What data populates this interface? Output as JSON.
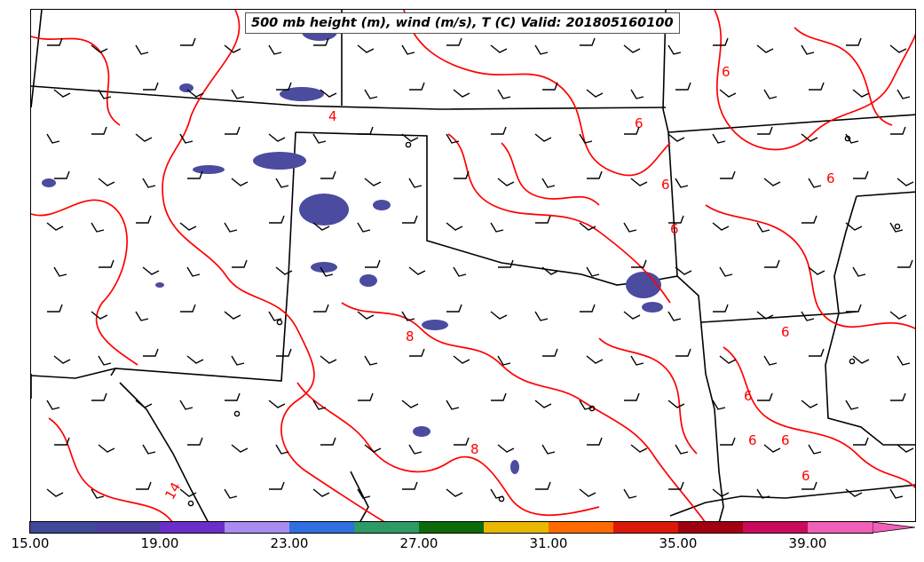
{
  "title": "500 mb height (m), wind (m/s), T (C) Valid: 201805160100",
  "contour_color": "#ff0000",
  "boundary_color": "#000000",
  "precip_color": "#4b4ba0",
  "contour_labels": [
    "4",
    "6",
    "6",
    "6",
    "6",
    "6",
    "6",
    "6",
    "6",
    "6",
    "6",
    "8",
    "8",
    "14"
  ],
  "colorbar": {
    "colors": [
      "#3f4a9a",
      "#4b3f9e",
      "#6a2fc8",
      "#a98cf0",
      "#2f6fe0",
      "#2e9a66",
      "#0b6b0b",
      "#e8b800",
      "#ff6a00",
      "#dd1a0a",
      "#a00010",
      "#cc0a5a",
      "#f060b8"
    ],
    "tick_labels": [
      "15.00",
      "19.00",
      "23.00",
      "27.00",
      "31.00",
      "35.00",
      "39.00"
    ],
    "extend": "max"
  }
}
